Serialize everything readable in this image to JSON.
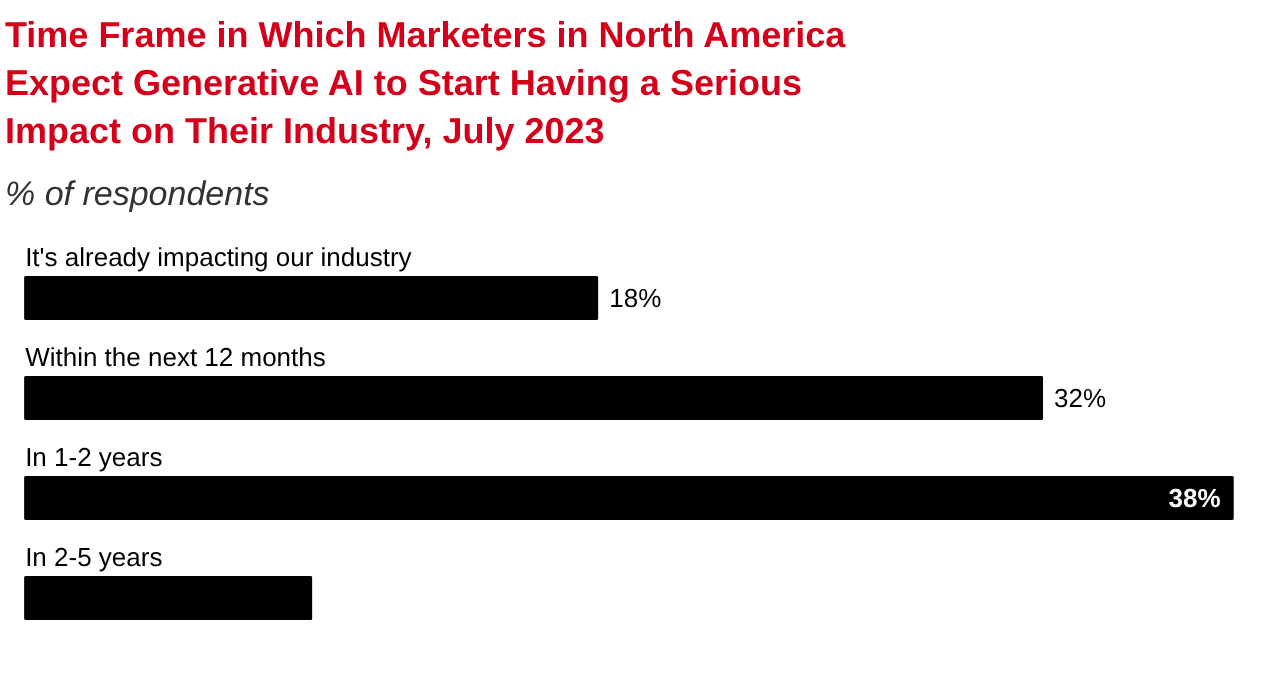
{
  "chart_data": {
    "type": "bar",
    "orientation": "horizontal",
    "title": "Time Frame in Which Marketers in North America Expect Generative AI to Start Having a Serious Impact on Their Industry, July 2023",
    "subtitle": "% of respondents",
    "categories": [
      "It's already impacting our industry",
      "Within the next 12 months",
      "In 1-2 years",
      "In 2-5 years"
    ],
    "values": [
      18,
      32,
      38,
      9
    ],
    "value_labels": [
      "18%",
      "32%",
      "38%",
      null
    ],
    "color": "#000000"
  }
}
